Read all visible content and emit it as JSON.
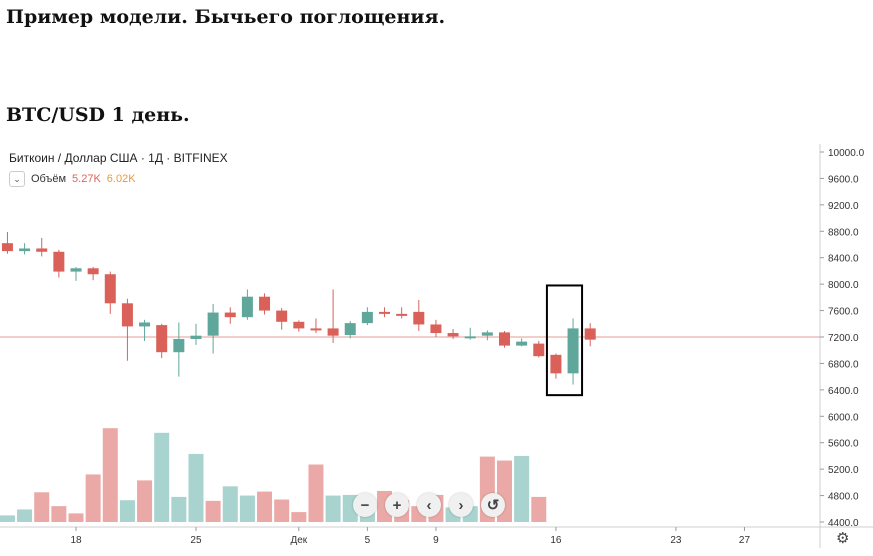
{
  "doc_title": "Пример модели. Бычьего поглощения.",
  "chart_subtitle": "BTC/USD 1 день.",
  "header": {
    "symbol": "Биткоин / Доллар США · 1Д · BITFINEX",
    "volume_label": "Объём",
    "volume_a": "5.27K",
    "volume_b": "6.02K",
    "toggle_icon": "chevron-down-icon"
  },
  "controls": {
    "zoom_out": "−",
    "zoom_in": "+",
    "back": "‹",
    "forward": "›",
    "reset": "↺",
    "settings": "⚙"
  },
  "colors": {
    "up": "#5fa79a",
    "down": "#d9615a",
    "up_volume": "#a8d3cf",
    "down_volume": "#eaa9a6",
    "price_line": "#e39c98",
    "highlight_box": "#000000"
  },
  "chart_data": {
    "type": "candlestick",
    "y_axis_ticks": [
      "10000.0",
      "9600.0",
      "9200.0",
      "8800.0",
      "8400.0",
      "8000.0",
      "7600.0",
      "7200.0",
      "6800.0",
      "6400.0",
      "6000.0",
      "5600.0",
      "5200.0",
      "4800.0",
      "4400.0"
    ],
    "ylim": [
      4400,
      10000
    ],
    "x_axis_ticks": [
      {
        "label": "18",
        "day": 18
      },
      {
        "label": "25",
        "day": 25
      },
      {
        "label": "Дек",
        "day": 31
      },
      {
        "label": "5",
        "day": 35
      },
      {
        "label": "9",
        "day": 39
      },
      {
        "label": "16",
        "day": 46
      },
      {
        "label": "23",
        "day": 53
      },
      {
        "label": "27",
        "day": 57
      }
    ],
    "current_price": 7200,
    "candles": [
      {
        "day": 13,
        "open": 8730,
        "high": 8800,
        "low": 8600,
        "close": 8620
      },
      {
        "day": 14,
        "open": 8620,
        "high": 8790,
        "low": 8460,
        "close": 8500
      },
      {
        "day": 15,
        "open": 8500,
        "high": 8620,
        "low": 8450,
        "close": 8540
      },
      {
        "day": 16,
        "open": 8540,
        "high": 8700,
        "low": 8420,
        "close": 8490
      },
      {
        "day": 17,
        "open": 8490,
        "high": 8520,
        "low": 8100,
        "close": 8190
      },
      {
        "day": 18,
        "open": 8190,
        "high": 8260,
        "low": 8050,
        "close": 8240
      },
      {
        "day": 19,
        "open": 8240,
        "high": 8260,
        "low": 8060,
        "close": 8150
      },
      {
        "day": 20,
        "open": 8150,
        "high": 8190,
        "low": 7550,
        "close": 7710
      },
      {
        "day": 21,
        "open": 7710,
        "high": 7780,
        "low": 6840,
        "close": 7360
      },
      {
        "day": 22,
        "open": 7360,
        "high": 7460,
        "low": 7140,
        "close": 7420
      },
      {
        "day": 23,
        "open": 7380,
        "high": 7400,
        "low": 6880,
        "close": 6970
      },
      {
        "day": 24,
        "open": 6970,
        "high": 7420,
        "low": 6600,
        "close": 7170
      },
      {
        "day": 25,
        "open": 7170,
        "high": 7400,
        "low": 7080,
        "close": 7220
      },
      {
        "day": 26,
        "open": 7220,
        "high": 7700,
        "low": 6950,
        "close": 7570
      },
      {
        "day": 27,
        "open": 7570,
        "high": 7650,
        "low": 7400,
        "close": 7500
      },
      {
        "day": 28,
        "open": 7500,
        "high": 7920,
        "low": 7460,
        "close": 7810
      },
      {
        "day": 29,
        "open": 7810,
        "high": 7860,
        "low": 7540,
        "close": 7600
      },
      {
        "day": 30,
        "open": 7600,
        "high": 7640,
        "low": 7310,
        "close": 7430
      },
      {
        "day": 31,
        "open": 7430,
        "high": 7450,
        "low": 7280,
        "close": 7330
      },
      {
        "day": 32,
        "open": 7330,
        "high": 7480,
        "low": 7260,
        "close": 7310
      },
      {
        "day": 33,
        "open": 7330,
        "high": 7920,
        "low": 7110,
        "close": 7220
      },
      {
        "day": 34,
        "open": 7230,
        "high": 7440,
        "low": 7180,
        "close": 7410
      },
      {
        "day": 35,
        "open": 7410,
        "high": 7650,
        "low": 7380,
        "close": 7580
      },
      {
        "day": 36,
        "open": 7580,
        "high": 7650,
        "low": 7500,
        "close": 7550
      },
      {
        "day": 37,
        "open": 7550,
        "high": 7650,
        "low": 7480,
        "close": 7520
      },
      {
        "day": 38,
        "open": 7580,
        "high": 7760,
        "low": 7290,
        "close": 7390
      },
      {
        "day": 39,
        "open": 7390,
        "high": 7460,
        "low": 7200,
        "close": 7260
      },
      {
        "day": 40,
        "open": 7260,
        "high": 7320,
        "low": 7170,
        "close": 7210
      },
      {
        "day": 41,
        "open": 7210,
        "high": 7340,
        "low": 7160,
        "close": 7210
      },
      {
        "day": 42,
        "open": 7220,
        "high": 7300,
        "low": 7150,
        "close": 7270
      },
      {
        "day": 43,
        "open": 7270,
        "high": 7290,
        "low": 7040,
        "close": 7070
      },
      {
        "day": 44,
        "open": 7070,
        "high": 7180,
        "low": 7060,
        "close": 7130
      },
      {
        "day": 45,
        "open": 7100,
        "high": 7140,
        "low": 6890,
        "close": 6910
      },
      {
        "day": 46,
        "open": 6930,
        "high": 6950,
        "low": 6570,
        "close": 6650
      },
      {
        "day": 47,
        "open": 6650,
        "high": 7480,
        "low": 6480,
        "close": 7330
      },
      {
        "day": 48,
        "open": 7330,
        "high": 7410,
        "low": 7060,
        "close": 7160
      }
    ],
    "volume": [
      {
        "day": 12,
        "value": 4620,
        "dir": "down"
      },
      {
        "day": 13,
        "value": 4780,
        "dir": "down"
      },
      {
        "day": 14,
        "value": 4500,
        "dir": "up"
      },
      {
        "day": 15,
        "value": 4590,
        "dir": "up"
      },
      {
        "day": 16,
        "value": 4850,
        "dir": "down"
      },
      {
        "day": 17,
        "value": 4640,
        "dir": "down"
      },
      {
        "day": 18,
        "value": 4530,
        "dir": "down"
      },
      {
        "day": 19,
        "value": 5120,
        "dir": "down"
      },
      {
        "day": 20,
        "value": 5820,
        "dir": "down"
      },
      {
        "day": 21,
        "value": 4730,
        "dir": "up"
      },
      {
        "day": 22,
        "value": 5030,
        "dir": "down"
      },
      {
        "day": 23,
        "value": 5750,
        "dir": "up"
      },
      {
        "day": 24,
        "value": 4780,
        "dir": "up"
      },
      {
        "day": 25,
        "value": 5430,
        "dir": "up"
      },
      {
        "day": 26,
        "value": 4720,
        "dir": "down"
      },
      {
        "day": 27,
        "value": 4940,
        "dir": "up"
      },
      {
        "day": 28,
        "value": 4800,
        "dir": "up"
      },
      {
        "day": 29,
        "value": 4860,
        "dir": "down"
      },
      {
        "day": 30,
        "value": 4740,
        "dir": "down"
      },
      {
        "day": 31,
        "value": 4550,
        "dir": "down"
      },
      {
        "day": 32,
        "value": 5270,
        "dir": "down"
      },
      {
        "day": 33,
        "value": 4800,
        "dir": "up"
      },
      {
        "day": 34,
        "value": 4810,
        "dir": "up"
      },
      {
        "day": 35,
        "value": 4620,
        "dir": "up"
      },
      {
        "day": 36,
        "value": 4870,
        "dir": "down"
      },
      {
        "day": 37,
        "value": 4730,
        "dir": "down"
      },
      {
        "day": 38,
        "value": 4640,
        "dir": "down"
      },
      {
        "day": 39,
        "value": 4810,
        "dir": "down"
      },
      {
        "day": 40,
        "value": 4620,
        "dir": "up"
      },
      {
        "day": 41,
        "value": 4640,
        "dir": "up"
      },
      {
        "day": 42,
        "value": 5390,
        "dir": "down"
      },
      {
        "day": 43,
        "value": 5330,
        "dir": "down"
      },
      {
        "day": 44,
        "value": 5400,
        "dir": "up"
      },
      {
        "day": 45,
        "value": 4780,
        "dir": "down"
      }
    ],
    "highlight": {
      "from_day": 46,
      "to_day": 47,
      "low": 6320,
      "high": 7980
    }
  }
}
